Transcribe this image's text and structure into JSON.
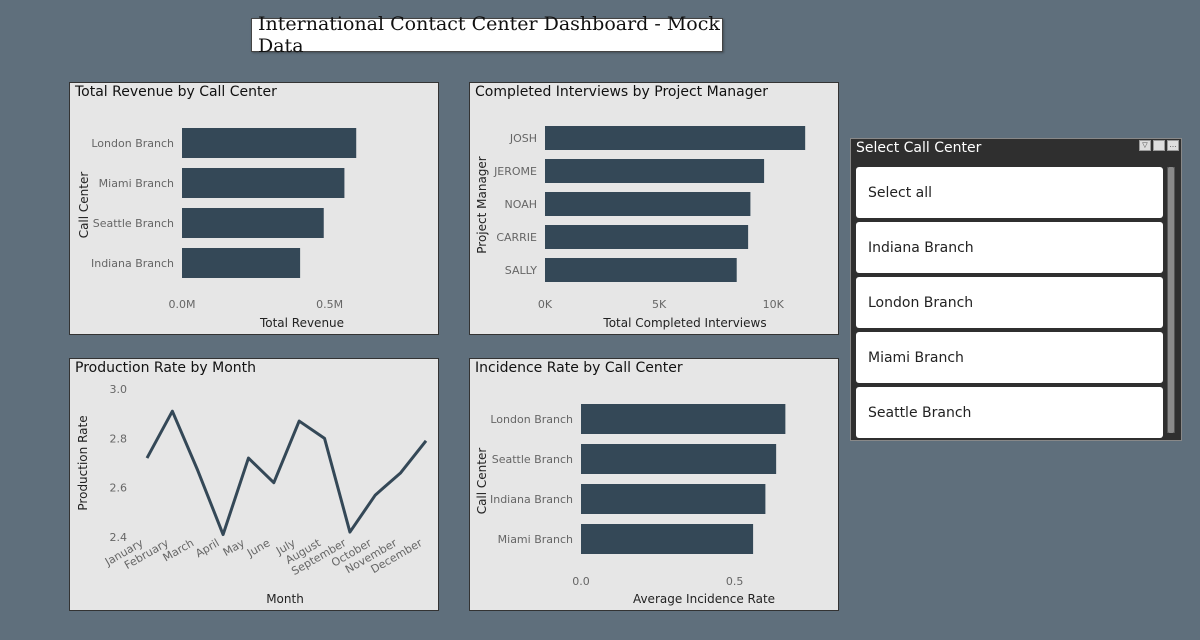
{
  "dashboard_title": "International Contact Center Dashboard - Mock Data",
  "colors": {
    "bar": "#344857",
    "line": "#344857",
    "panel_bg": "#e6e6e6",
    "page_bg": "#5f6f7c"
  },
  "slicer": {
    "title": "Select Call Center",
    "items": [
      "Select all",
      "Indiana Branch",
      "London Branch",
      "Miami Branch",
      "Seattle Branch"
    ],
    "icons": [
      "filter-icon",
      "focus-mode-icon",
      "more-options-icon"
    ]
  },
  "chart_data": [
    {
      "id": "revenue",
      "type": "bar",
      "orientation": "horizontal",
      "title": "Total Revenue by Call Center",
      "xlabel": "Total Revenue",
      "ylabel": "Call Center",
      "categories": [
        "London Branch",
        "Miami Branch",
        "Seattle Branch",
        "Indiana Branch"
      ],
      "values": [
        0.59,
        0.55,
        0.48,
        0.4
      ],
      "xlim": [
        0,
        0.85
      ],
      "ticks": [
        0,
        0.5
      ],
      "tick_labels": [
        "0.0M",
        "0.5M"
      ]
    },
    {
      "id": "interviews",
      "type": "bar",
      "orientation": "horizontal",
      "title": "Completed Interviews by Project Manager",
      "xlabel": "Total Completed Interviews",
      "ylabel": "Project Manager",
      "categories": [
        "JOSH",
        "JEROME",
        "NOAH",
        "CARRIE",
        "SALLY"
      ],
      "values": [
        11400,
        9600,
        9000,
        8900,
        8400
      ],
      "xlim": [
        0,
        12400
      ],
      "ticks": [
        0,
        5000,
        10000
      ],
      "tick_labels": [
        "0K",
        "5K",
        "10K"
      ]
    },
    {
      "id": "production",
      "type": "line",
      "title": "Production Rate by Month",
      "xlabel": "Month",
      "ylabel": "Production Rate",
      "x": [
        "January",
        "February",
        "March",
        "April",
        "May",
        "June",
        "July",
        "August",
        "September",
        "October",
        "November",
        "December"
      ],
      "values": [
        2.72,
        2.91,
        2.67,
        2.41,
        2.72,
        2.62,
        2.87,
        2.8,
        2.42,
        2.57,
        2.66,
        2.79
      ],
      "ylim": [
        2.4,
        3.0
      ],
      "ticks": [
        2.4,
        2.6,
        2.8,
        3.0
      ],
      "tick_labels": [
        "2.4",
        "2.6",
        "2.8",
        "3.0"
      ]
    },
    {
      "id": "incidence",
      "type": "bar",
      "orientation": "horizontal",
      "title": "Incidence Rate by Call Center",
      "xlabel": "Average Incidence Rate",
      "ylabel": "Call Center",
      "categories": [
        "London Branch",
        "Seattle Branch",
        "Indiana Branch",
        "Miami Branch"
      ],
      "values": [
        0.665,
        0.635,
        0.6,
        0.56
      ],
      "xlim": [
        0,
        0.82
      ],
      "ticks": [
        0,
        0.5
      ],
      "tick_labels": [
        "0.0",
        "0.5"
      ]
    }
  ]
}
